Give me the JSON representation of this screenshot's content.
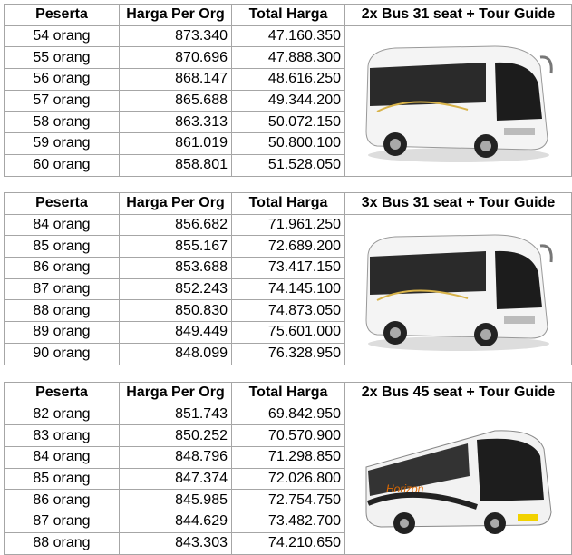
{
  "columns": [
    "Peserta",
    "Harga Per Org",
    "Total Harga"
  ],
  "packages": [
    {
      "title": "2x Bus 31 seat + Tour Guide",
      "image": "white-medium-bus",
      "rows": [
        [
          "54 orang",
          "873.340",
          "47.160.350"
        ],
        [
          "55 orang",
          "870.696",
          "47.888.300"
        ],
        [
          "56 orang",
          "868.147",
          "48.616.250"
        ],
        [
          "57 orang",
          "865.688",
          "49.344.200"
        ],
        [
          "58 orang",
          "863.313",
          "50.072.150"
        ],
        [
          "59 orang",
          "861.019",
          "50.800.100"
        ],
        [
          "60 orang",
          "858.801",
          "51.528.050"
        ]
      ]
    },
    {
      "title": "3x Bus 31 seat + Tour Guide",
      "image": "white-medium-bus",
      "rows": [
        [
          "84 orang",
          "856.682",
          "71.961.250"
        ],
        [
          "85 orang",
          "855.167",
          "72.689.200"
        ],
        [
          "86 orang",
          "853.688",
          "73.417.150"
        ],
        [
          "87 orang",
          "852.243",
          "74.145.100"
        ],
        [
          "88 orang",
          "850.830",
          "74.873.050"
        ],
        [
          "89 orang",
          "849.449",
          "75.601.000"
        ],
        [
          "90 orang",
          "848.099",
          "76.328.950"
        ]
      ]
    },
    {
      "title": "2x Bus 45 seat + Tour Guide",
      "image": "large-coach-bus",
      "logo_text": "Horizon",
      "rows": [
        [
          "82 orang",
          "851.743",
          "69.842.950"
        ],
        [
          "83 orang",
          "850.252",
          "70.570.900"
        ],
        [
          "84 orang",
          "848.796",
          "71.298.850"
        ],
        [
          "85 orang",
          "847.374",
          "72.026.800"
        ],
        [
          "86 orang",
          "845.985",
          "72.754.750"
        ],
        [
          "87 orang",
          "844.629",
          "73.482.700"
        ],
        [
          "88 orang",
          "843.303",
          "74.210.650"
        ]
      ]
    }
  ]
}
